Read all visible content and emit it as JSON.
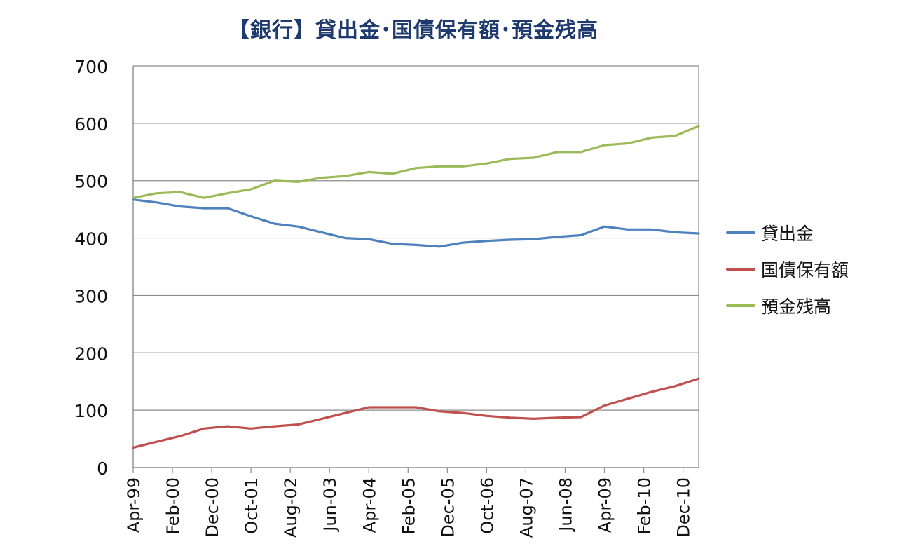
{
  "chart_data": {
    "type": "line",
    "title": "【銀行】貸出金･国債保有額･預金残高",
    "xlabel": "",
    "ylabel": "",
    "ylim": [
      0,
      700
    ],
    "yticks": [
      0,
      100,
      200,
      300,
      400,
      500,
      600,
      700
    ],
    "x_start": "Apr-99",
    "x_end": "Apr-11",
    "x_tick_labels": [
      "Apr-99",
      "Feb-00",
      "Dec-00",
      "Oct-01",
      "Aug-02",
      "Jun-03",
      "Apr-04",
      "Feb-05",
      "Dec-05",
      "Oct-06",
      "Aug-07",
      "Jun-08",
      "Apr-09",
      "Feb-10",
      "Dec-10"
    ],
    "grid": "horizontal",
    "legend_position": "right",
    "x_dates": [
      "Apr-99",
      "Oct-99",
      "Apr-00",
      "Oct-00",
      "Apr-01",
      "Oct-01",
      "Apr-02",
      "Oct-02",
      "Apr-03",
      "Oct-03",
      "Apr-04",
      "Oct-04",
      "Apr-05",
      "Oct-05",
      "Apr-06",
      "Oct-06",
      "Apr-07",
      "Oct-07",
      "Apr-08",
      "Oct-08",
      "Apr-09",
      "Oct-09",
      "Apr-10",
      "Oct-10",
      "Apr-11"
    ],
    "series": [
      {
        "name": "貸出金",
        "color": "#4f81bd",
        "values": [
          467,
          462,
          455,
          452,
          452,
          438,
          425,
          420,
          410,
          400,
          398,
          390,
          388,
          385,
          392,
          395,
          397,
          398,
          402,
          405,
          420,
          415,
          415,
          410,
          408
        ]
      },
      {
        "name": "国債保有額",
        "color": "#c0504d",
        "values": [
          35,
          45,
          55,
          68,
          72,
          68,
          72,
          75,
          85,
          95,
          105,
          105,
          105,
          98,
          95,
          90,
          87,
          85,
          87,
          88,
          108,
          120,
          132,
          142,
          155
        ]
      },
      {
        "name": "預金残高",
        "color": "#9bbb59",
        "values": [
          470,
          478,
          480,
          470,
          478,
          485,
          500,
          498,
          505,
          508,
          515,
          512,
          522,
          525,
          525,
          530,
          538,
          540,
          550,
          550,
          562,
          565,
          575,
          578,
          595
        ]
      }
    ]
  }
}
